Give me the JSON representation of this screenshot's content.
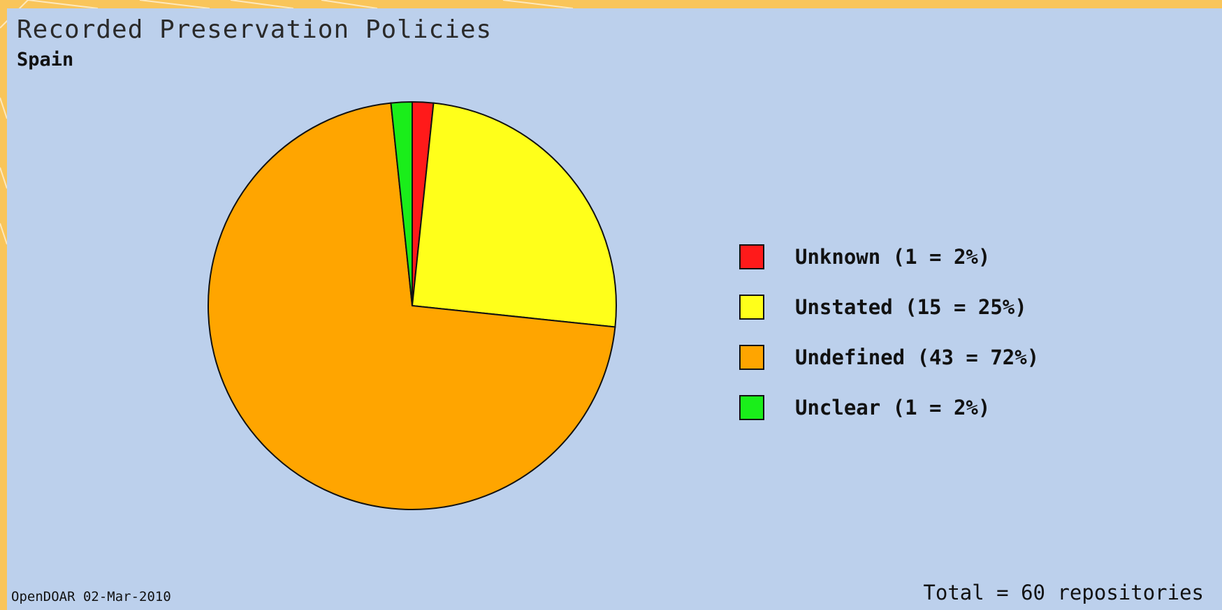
{
  "chart_data": {
    "type": "pie",
    "title": "Recorded Preservation Policies",
    "subtitle": "Spain",
    "categories": [
      "Unknown",
      "Unstated",
      "Undefined",
      "Unclear"
    ],
    "values": [
      1,
      15,
      43,
      1
    ],
    "legend": [
      {
        "label": "Unknown (1 = 2%)",
        "color": "#ff1a1a"
      },
      {
        "label": "Unstated (15 = 25%)",
        "color": "#ffff1a"
      },
      {
        "label": "Undefined (43 = 72%)",
        "color": "#ffa500"
      },
      {
        "label": "Unclear (1 = 2%)",
        "color": "#1aee1a"
      }
    ],
    "legend_position": "right",
    "footer_source": "OpenDOAR 02-Mar-2010",
    "footer_total": "Total = 60 repositories"
  },
  "colors": {
    "background": "#bcd0ec",
    "frame": "#f9c55a",
    "outline": "#111111"
  }
}
